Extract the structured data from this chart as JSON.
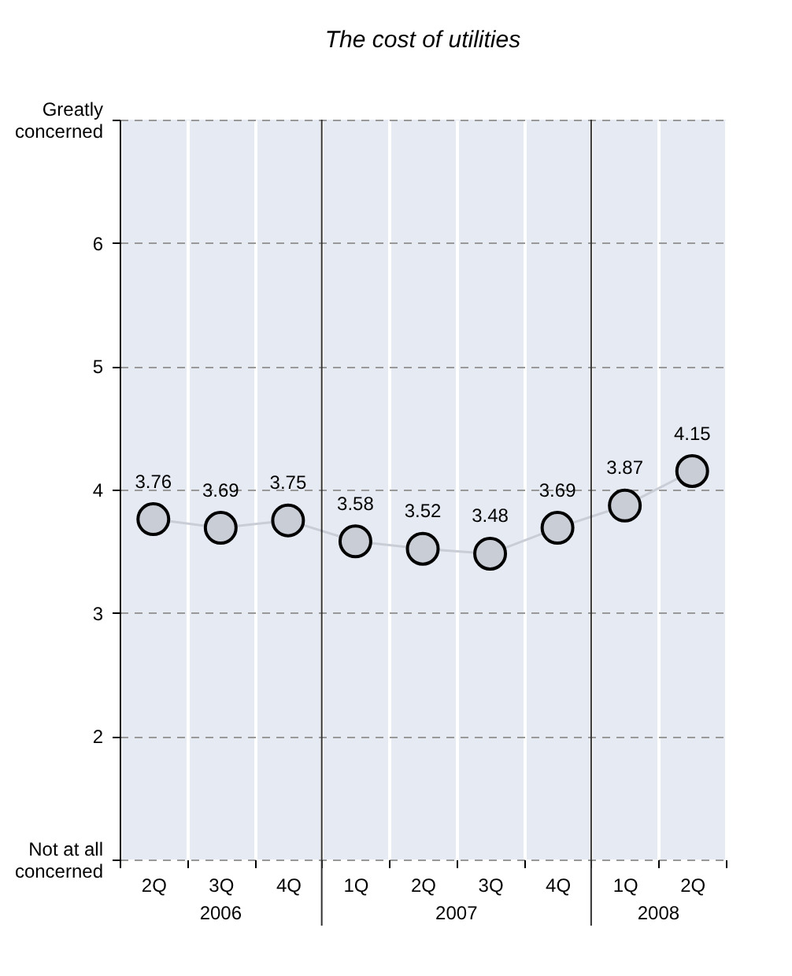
{
  "chart_data": {
    "type": "line",
    "title": "The cost of utilities",
    "categories": [
      "2Q",
      "3Q",
      "4Q",
      "1Q",
      "2Q",
      "3Q",
      "4Q",
      "1Q",
      "2Q"
    ],
    "series": [
      {
        "color": "#c9cdd6",
        "values": [
          3.76,
          3.69,
          3.75,
          3.58,
          3.52,
          3.48,
          3.69,
          3.87,
          4.15
        ]
      }
    ],
    "ylim": [
      1,
      7
    ],
    "yticks": [
      {
        "value": 1,
        "label": "Not at all\nconcerned"
      },
      2,
      3,
      4,
      5,
      6,
      {
        "value": 7,
        "label": "Greatly\nconcerned"
      }
    ],
    "annotations": [
      "2006",
      "2007",
      "2008"
    ],
    "data_labels": true,
    "grid": true,
    "marker": "circle",
    "legend": false
  }
}
